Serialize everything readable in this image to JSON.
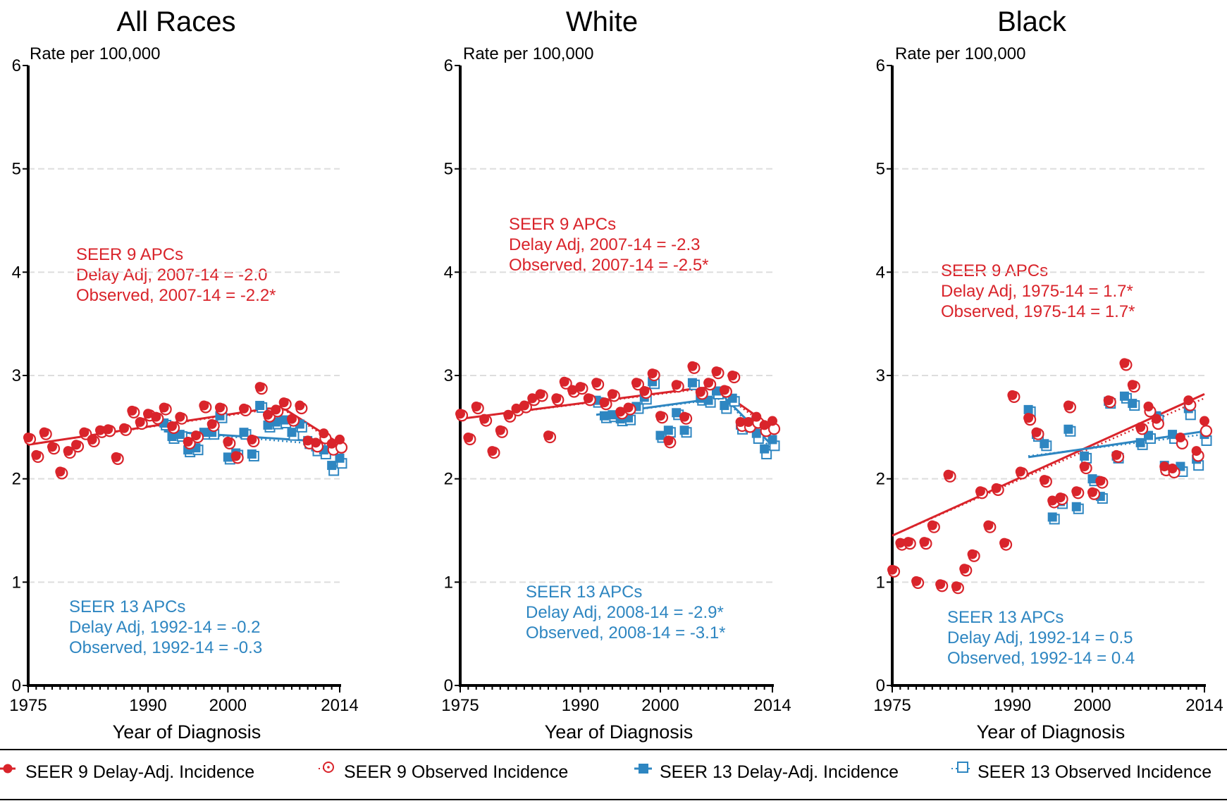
{
  "colors": {
    "seer9": "#d9242b",
    "seer13": "#2e86c1",
    "axis": "#000000",
    "grid": "#dddddd"
  },
  "legend": [
    {
      "label": "SEER 9 Delay-Adj. Incidence",
      "icon": "filled-circle-line-icon",
      "series": "seer9_delay"
    },
    {
      "label": "SEER 9 Observed Incidence",
      "icon": "open-circle-dotted-icon",
      "series": "seer9_obs"
    },
    {
      "label": "SEER 13 Delay-Adj. Incidence",
      "icon": "filled-square-line-icon",
      "series": "seer13_delay"
    },
    {
      "label": "SEER 13 Observed Incidence",
      "icon": "open-square-dotted-icon",
      "series": "seer13_obs"
    }
  ],
  "chart_data": [
    {
      "type": "scatter",
      "title": "All Races",
      "xlabel": "Year of Diagnosis",
      "ylabel": "Rate per 100,000",
      "xlim": [
        1975,
        2014
      ],
      "ylim": [
        0,
        6
      ],
      "xticks": [
        1975,
        1990,
        2000,
        2014
      ],
      "yticks": [
        0,
        1,
        2,
        3,
        4,
        5,
        6
      ],
      "grid": true,
      "annotations": {
        "seer9": [
          "SEER 9 APCs",
          "Delay Adj, 2007-14 = -2.0",
          "Observed, 2007-14 = -2.2*"
        ],
        "seer13": [
          "SEER 13 APCs",
          "Delay Adj, 1992-14 = -0.2",
          "Observed, 1992-14 = -0.3"
        ]
      },
      "series": [
        {
          "name": "SEER 9 Delay-Adj. Incidence",
          "key": "seer9_delay",
          "x0": 1975,
          "values": [
            2.4,
            2.23,
            2.45,
            2.31,
            2.07,
            2.27,
            2.33,
            2.45,
            2.38,
            2.47,
            2.48,
            2.21,
            2.49,
            2.66,
            2.55,
            2.63,
            2.6,
            2.69,
            2.51,
            2.6,
            2.36,
            2.42,
            2.71,
            2.53,
            2.69,
            2.36,
            2.22,
            2.68,
            2.38,
            2.89,
            2.62,
            2.67,
            2.74,
            2.58,
            2.71,
            2.37,
            2.35,
            2.44,
            2.34,
            2.38
          ]
        },
        {
          "name": "SEER 9 Observed Incidence",
          "key": "seer9_obs",
          "x0": 1975,
          "values": [
            2.4,
            2.23,
            2.45,
            2.31,
            2.07,
            2.27,
            2.33,
            2.45,
            2.38,
            2.47,
            2.48,
            2.21,
            2.49,
            2.66,
            2.55,
            2.63,
            2.6,
            2.69,
            2.51,
            2.6,
            2.36,
            2.42,
            2.71,
            2.53,
            2.69,
            2.36,
            2.22,
            2.68,
            2.38,
            2.89,
            2.62,
            2.67,
            2.74,
            2.58,
            2.7,
            2.36,
            2.33,
            2.41,
            2.3,
            2.32
          ]
        },
        {
          "name": "SEER 13 Delay-Adj. Incidence",
          "key": "seer13_delay",
          "x0": 1992,
          "values": [
            2.54,
            2.41,
            2.43,
            2.28,
            2.3,
            2.45,
            2.45,
            2.61,
            2.21,
            2.25,
            2.45,
            2.24,
            2.71,
            2.52,
            2.55,
            2.57,
            2.45,
            2.53,
            2.37,
            2.31,
            2.28,
            2.13,
            2.2
          ]
        },
        {
          "name": "SEER 13 Observed Incidence",
          "key": "seer13_obs",
          "x0": 1992,
          "values": [
            2.54,
            2.41,
            2.43,
            2.28,
            2.3,
            2.45,
            2.45,
            2.61,
            2.21,
            2.25,
            2.45,
            2.24,
            2.71,
            2.52,
            2.55,
            2.56,
            2.44,
            2.52,
            2.36,
            2.29,
            2.26,
            2.1,
            2.17
          ]
        }
      ],
      "trends": {
        "seer9_delay": [
          [
            1975,
            2.33
          ],
          [
            2005,
            2.68
          ],
          [
            2007,
            2.68
          ],
          [
            2014,
            2.34
          ]
        ],
        "seer9_obs": [
          [
            1975,
            2.33
          ],
          [
            2005,
            2.67
          ],
          [
            2007,
            2.67
          ],
          [
            2014,
            2.32
          ]
        ],
        "seer13_delay": [
          [
            1992,
            2.46
          ],
          [
            2014,
            2.35
          ]
        ],
        "seer13_obs": [
          [
            1992,
            2.46
          ],
          [
            2014,
            2.32
          ]
        ]
      }
    },
    {
      "type": "scatter",
      "title": "White",
      "xlabel": "Year of Diagnosis",
      "ylabel": "Rate per 100,000",
      "xlim": [
        1975,
        2014
      ],
      "ylim": [
        0,
        6
      ],
      "xticks": [
        1975,
        1990,
        2000,
        2014
      ],
      "yticks": [
        0,
        1,
        2,
        3,
        4,
        5,
        6
      ],
      "grid": true,
      "annotations": {
        "seer9": [
          "SEER 9 APCs",
          "Delay Adj, 2007-14 = -2.3",
          "Observed, 2007-14 = -2.5*"
        ],
        "seer13": [
          "SEER 13 APCs",
          "Delay Adj, 2008-14 = -2.9*",
          "Observed, 2008-14 = -3.1*"
        ]
      },
      "series": [
        {
          "name": "SEER 9 Delay-Adj. Incidence",
          "key": "seer9_delay",
          "x0": 1975,
          "values": [
            2.63,
            2.4,
            2.7,
            2.58,
            2.27,
            2.47,
            2.62,
            2.68,
            2.71,
            2.78,
            2.82,
            2.42,
            2.78,
            2.94,
            2.86,
            2.89,
            2.78,
            2.93,
            2.74,
            2.82,
            2.65,
            2.69,
            2.93,
            2.85,
            3.02,
            2.61,
            2.37,
            2.91,
            2.6,
            3.09,
            2.84,
            2.93,
            3.04,
            2.86,
            3.0,
            2.55,
            2.55,
            2.6,
            2.52,
            2.56
          ]
        },
        {
          "name": "SEER 9 Observed Incidence",
          "key": "seer9_obs",
          "x0": 1975,
          "values": [
            2.63,
            2.4,
            2.7,
            2.58,
            2.27,
            2.47,
            2.62,
            2.68,
            2.71,
            2.78,
            2.82,
            2.42,
            2.78,
            2.94,
            2.86,
            2.89,
            2.78,
            2.93,
            2.74,
            2.82,
            2.65,
            2.69,
            2.93,
            2.85,
            3.02,
            2.61,
            2.37,
            2.91,
            2.6,
            3.09,
            2.84,
            2.93,
            3.04,
            2.86,
            3.0,
            2.53,
            2.52,
            2.56,
            2.48,
            2.5
          ]
        },
        {
          "name": "SEER 13 Delay-Adj. Incidence",
          "key": "seer13_delay",
          "x0": 1992,
          "values": [
            2.76,
            2.61,
            2.62,
            2.58,
            2.59,
            2.7,
            2.79,
            2.94,
            2.42,
            2.47,
            2.64,
            2.47,
            2.93,
            2.78,
            2.76,
            2.85,
            2.71,
            2.78,
            2.52,
            2.55,
            2.44,
            2.29,
            2.38
          ]
        },
        {
          "name": "SEER 13 Observed Incidence",
          "key": "seer13_obs",
          "x0": 1992,
          "values": [
            2.76,
            2.61,
            2.62,
            2.58,
            2.59,
            2.7,
            2.79,
            2.94,
            2.42,
            2.47,
            2.64,
            2.47,
            2.93,
            2.78,
            2.76,
            2.84,
            2.7,
            2.77,
            2.5,
            2.52,
            2.41,
            2.26,
            2.34
          ]
        }
      ],
      "trends": {
        "seer9_delay": [
          [
            1975,
            2.58
          ],
          [
            2005,
            2.88
          ],
          [
            2007,
            2.88
          ],
          [
            2014,
            2.5
          ]
        ],
        "seer9_obs": [
          [
            1975,
            2.58
          ],
          [
            2005,
            2.87
          ],
          [
            2007,
            2.87
          ],
          [
            2014,
            2.47
          ]
        ],
        "seer13_delay": [
          [
            1992,
            2.62
          ],
          [
            2008,
            2.79
          ],
          [
            2014,
            2.32
          ]
        ],
        "seer13_obs": [
          [
            1992,
            2.62
          ],
          [
            2008,
            2.78
          ],
          [
            2014,
            2.28
          ]
        ]
      }
    },
    {
      "type": "scatter",
      "title": "Black",
      "xlabel": "Year of Diagnosis",
      "ylabel": "Rate per 100,000",
      "xlim": [
        1975,
        2014
      ],
      "ylim": [
        0,
        6
      ],
      "xticks": [
        1975,
        1990,
        2000,
        2014
      ],
      "yticks": [
        0,
        1,
        2,
        3,
        4,
        5,
        6
      ],
      "grid": true,
      "annotations": {
        "seer9": [
          "SEER 9 APCs",
          "Delay Adj, 1975-14 = 1.7*",
          "Observed, 1975-14 = 1.7*"
        ],
        "seer13": [
          "SEER 13 APCs",
          "Delay Adj, 1992-14 = 0.5",
          "Observed, 1992-14 = 0.4"
        ]
      },
      "series": [
        {
          "name": "SEER 9 Delay-Adj. Incidence",
          "key": "seer9_delay",
          "x0": 1975,
          "values": [
            1.12,
            1.38,
            1.39,
            1.01,
            1.39,
            1.55,
            0.98,
            2.04,
            0.96,
            1.13,
            1.27,
            1.88,
            1.55,
            1.91,
            1.38,
            2.81,
            2.07,
            2.59,
            2.45,
            1.99,
            1.79,
            1.82,
            2.71,
            1.88,
            2.12,
            1.87,
            1.98,
            2.76,
            2.23,
            3.12,
            2.91,
            2.5,
            2.7,
            2.58,
            2.12,
            2.1,
            2.4,
            2.76,
            2.27,
            2.56
          ]
        },
        {
          "name": "SEER 9 Observed Incidence",
          "key": "seer9_obs",
          "x0": 1975,
          "values": [
            1.12,
            1.38,
            1.39,
            1.01,
            1.39,
            1.55,
            0.98,
            2.04,
            0.96,
            1.13,
            1.27,
            1.88,
            1.55,
            1.91,
            1.38,
            2.81,
            2.07,
            2.59,
            2.45,
            1.99,
            1.79,
            1.82,
            2.71,
            1.88,
            2.12,
            1.87,
            1.98,
            2.76,
            2.23,
            3.12,
            2.91,
            2.5,
            2.67,
            2.55,
            2.1,
            2.08,
            2.36,
            2.73,
            2.24,
            2.48
          ]
        },
        {
          "name": "SEER 13 Delay-Adj. Incidence",
          "key": "seer13_delay",
          "x0": 1992,
          "values": [
            2.67,
            2.43,
            2.34,
            1.63,
            1.78,
            2.48,
            1.73,
            2.22,
            2.0,
            1.83,
            2.75,
            2.22,
            2.8,
            2.73,
            2.35,
            2.42,
            2.61,
            2.13,
            2.43,
            2.12,
            2.68,
            2.19,
            2.43
          ]
        },
        {
          "name": "SEER 13 Observed Incidence",
          "key": "seer13_obs",
          "x0": 1992,
          "values": [
            2.67,
            2.43,
            2.34,
            1.63,
            1.78,
            2.48,
            1.73,
            2.22,
            2.0,
            1.83,
            2.75,
            2.22,
            2.8,
            2.73,
            2.35,
            2.41,
            2.59,
            2.11,
            2.41,
            2.09,
            2.64,
            2.15,
            2.39
          ]
        }
      ],
      "trends": {
        "seer9_delay": [
          [
            1975,
            1.45
          ],
          [
            2014,
            2.82
          ]
        ],
        "seer9_obs": [
          [
            1975,
            1.45
          ],
          [
            2014,
            2.78
          ]
        ],
        "seer13_delay": [
          [
            1992,
            2.21
          ],
          [
            2014,
            2.46
          ]
        ],
        "seer13_obs": [
          [
            1992,
            2.22
          ],
          [
            2014,
            2.43
          ]
        ]
      }
    }
  ]
}
